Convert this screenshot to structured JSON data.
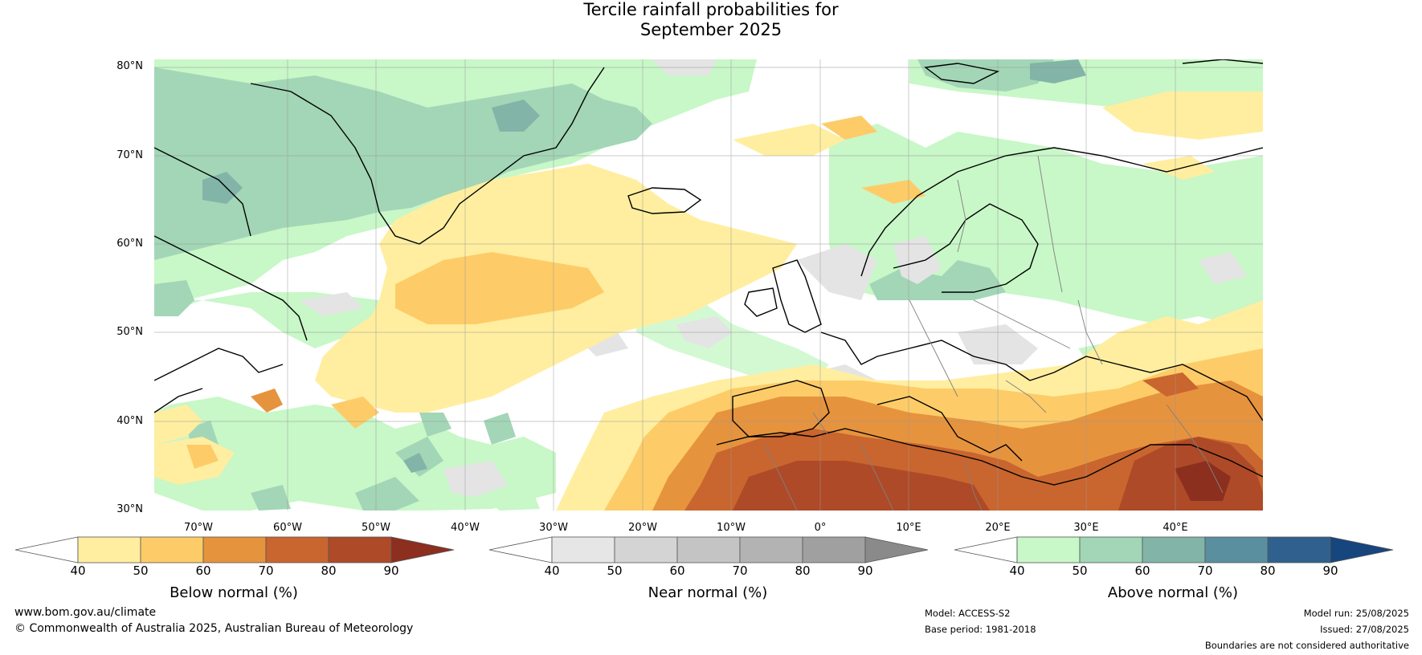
{
  "title_line1": "Tercile rainfall probabilities for",
  "title_line2": "September 2025",
  "lat_labels": [
    "80°N",
    "70°N",
    "60°N",
    "50°N",
    "40°N",
    "30°N"
  ],
  "lon_labels": [
    "70°W",
    "60°W",
    "50°W",
    "40°W",
    "30°W",
    "20°W",
    "10°W",
    "0°",
    "10°E",
    "20°E",
    "30°E",
    "40°E"
  ],
  "colorbars": [
    {
      "caption": "Below normal (%)",
      "ticks": [
        "40",
        "50",
        "60",
        "70",
        "80",
        "90"
      ],
      "colors": [
        "#ffffff",
        "#ffeea0",
        "#fdcc68",
        "#e6933e",
        "#c9652e",
        "#ae4a28",
        "#8c2f1e"
      ]
    },
    {
      "caption": "Near normal (%)",
      "ticks": [
        "40",
        "50",
        "60",
        "70",
        "80",
        "90"
      ],
      "colors": [
        "#ffffff",
        "#e6e6e6",
        "#d4d4d4",
        "#c4c4c4",
        "#b3b3b3",
        "#a0a0a0",
        "#8a8a8a"
      ]
    },
    {
      "caption": "Above normal (%)",
      "ticks": [
        "40",
        "50",
        "60",
        "70",
        "80",
        "90"
      ],
      "colors": [
        "#ffffff",
        "#c8f7c8",
        "#a2d6b6",
        "#82b4a8",
        "#5a8fa0",
        "#30608e",
        "#17457e"
      ]
    }
  ],
  "footer": {
    "website": "www.bom.gov.au/climate",
    "copyright": "© Commonwealth of Australia 2025, Australian Bureau of Meteorology",
    "model": "Model: ACCESS-S2",
    "base_period": "Base period: 1981-2018",
    "model_run": "Model run: 25/08/2025",
    "issued": "Issued: 27/08/2025",
    "boundaries": "Boundaries are not considered authoritative"
  }
}
